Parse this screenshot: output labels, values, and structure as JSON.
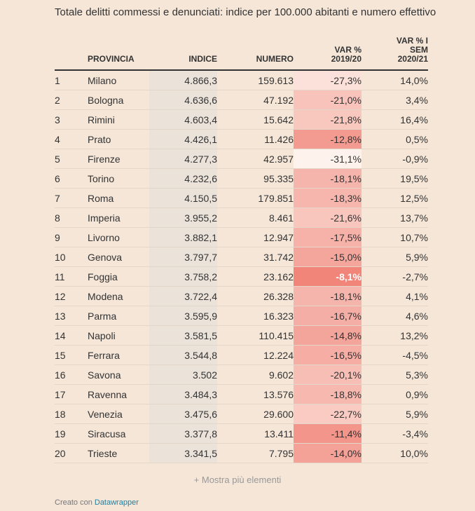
{
  "title": "Totale delitti commessi e denunciati: indice per 100.000 abitanti e numero effettivo",
  "headers": {
    "rank": "",
    "provincia": "PROVINCIA",
    "indice": "INDICE",
    "numero": "NUMERO",
    "var_line1": "VAR %",
    "var_line2": "2019/20",
    "sem_line1": "VAR % I",
    "sem_line2": "SEM",
    "sem_line3": "2020/21"
  },
  "rows": [
    {
      "rank": "1",
      "provincia": "Milano",
      "indice": "4.866,3",
      "numero": "159.613",
      "var": "-27,3%",
      "var_value": -27.3,
      "sem": "14,0%"
    },
    {
      "rank": "2",
      "provincia": "Bologna",
      "indice": "4.636,6",
      "numero": "47.192",
      "var": "-21,0%",
      "var_value": -21.0,
      "sem": "3,4%"
    },
    {
      "rank": "3",
      "provincia": "Rimini",
      "indice": "4.603,4",
      "numero": "15.642",
      "var": "-21,8%",
      "var_value": -21.8,
      "sem": "16,4%"
    },
    {
      "rank": "4",
      "provincia": "Prato",
      "indice": "4.426,1",
      "numero": "11.426",
      "var": "-12,8%",
      "var_value": -12.8,
      "sem": "0,5%"
    },
    {
      "rank": "5",
      "provincia": "Firenze",
      "indice": "4.277,3",
      "numero": "42.957",
      "var": "-31,1%",
      "var_value": -31.1,
      "sem": "-0,9%"
    },
    {
      "rank": "6",
      "provincia": "Torino",
      "indice": "4.232,6",
      "numero": "95.335",
      "var": "-18,1%",
      "var_value": -18.1,
      "sem": "19,5%"
    },
    {
      "rank": "7",
      "provincia": "Roma",
      "indice": "4.150,5",
      "numero": "179.851",
      "var": "-18,3%",
      "var_value": -18.3,
      "sem": "12,5%"
    },
    {
      "rank": "8",
      "provincia": "Imperia",
      "indice": "3.955,2",
      "numero": "8.461",
      "var": "-21,6%",
      "var_value": -21.6,
      "sem": "13,7%"
    },
    {
      "rank": "9",
      "provincia": "Livorno",
      "indice": "3.882,1",
      "numero": "12.947",
      "var": "-17,5%",
      "var_value": -17.5,
      "sem": "10,7%"
    },
    {
      "rank": "10",
      "provincia": "Genova",
      "indice": "3.797,7",
      "numero": "31.742",
      "var": "-15,0%",
      "var_value": -15.0,
      "sem": "5,9%"
    },
    {
      "rank": "11",
      "provincia": "Foggia",
      "indice": "3.758,2",
      "numero": "23.162",
      "var": "-8,1%",
      "var_value": -8.1,
      "sem": "-2,7%"
    },
    {
      "rank": "12",
      "provincia": "Modena",
      "indice": "3.722,4",
      "numero": "26.328",
      "var": "-18,1%",
      "var_value": -18.1,
      "sem": "4,1%"
    },
    {
      "rank": "13",
      "provincia": "Parma",
      "indice": "3.595,9",
      "numero": "16.323",
      "var": "-16,7%",
      "var_value": -16.7,
      "sem": "4,6%"
    },
    {
      "rank": "14",
      "provincia": "Napoli",
      "indice": "3.581,5",
      "numero": "110.415",
      "var": "-14,8%",
      "var_value": -14.8,
      "sem": "13,2%"
    },
    {
      "rank": "15",
      "provincia": "Ferrara",
      "indice": "3.544,8",
      "numero": "12.224",
      "var": "-16,5%",
      "var_value": -16.5,
      "sem": "-4,5%"
    },
    {
      "rank": "16",
      "provincia": "Savona",
      "indice": "3.502",
      "numero": "9.602",
      "var": "-20,1%",
      "var_value": -20.1,
      "sem": "5,3%"
    },
    {
      "rank": "17",
      "provincia": "Ravenna",
      "indice": "3.484,3",
      "numero": "13.576",
      "var": "-18,8%",
      "var_value": -18.8,
      "sem": "0,9%"
    },
    {
      "rank": "18",
      "provincia": "Venezia",
      "indice": "3.475,6",
      "numero": "29.600",
      "var": "-22,7%",
      "var_value": -22.7,
      "sem": "5,9%"
    },
    {
      "rank": "19",
      "provincia": "Siracusa",
      "indice": "3.377,8",
      "numero": "13.411",
      "var": "-11,4%",
      "var_value": -11.4,
      "sem": "-3,4%"
    },
    {
      "rank": "20",
      "provincia": "Trieste",
      "indice": "3.341,5",
      "numero": "7.795",
      "var": "-14,0%",
      "var_value": -14.0,
      "sem": "10,0%"
    }
  ],
  "colors": {
    "background": "#f5e6d8",
    "var_scale_low": "#fdf3ec",
    "var_scale_high": "#f1857a",
    "indice_column": "#ebe3da",
    "link": "#1d81a2"
  },
  "more_label": "+ Mostra più elementi",
  "footer": {
    "prefix": "Creato con",
    "link": "Datawrapper"
  }
}
